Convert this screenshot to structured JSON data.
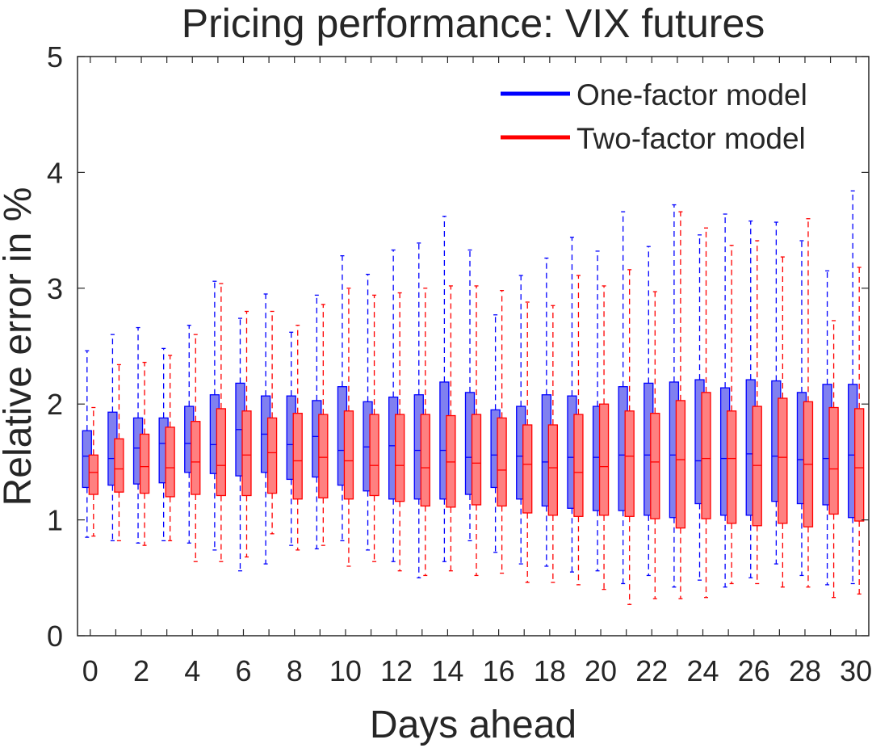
{
  "chart_data": {
    "type": "boxplot",
    "title": "Pricing performance: VIX futures",
    "xlabel": "Days ahead",
    "ylabel": "Relative error in %",
    "xlim": [
      -0.5,
      30.5
    ],
    "ylim": [
      0,
      5
    ],
    "xticks": [
      "0",
      "2",
      "4",
      "6",
      "8",
      "10",
      "12",
      "14",
      "16",
      "18",
      "20",
      "22",
      "24",
      "26",
      "28",
      "30"
    ],
    "yticks": [
      "0",
      "1",
      "2",
      "3",
      "4",
      "5"
    ],
    "legend_position": "top-right",
    "series": [
      {
        "name": "One-factor model",
        "color": "#0000ff",
        "fill": "#8080f0",
        "days": [
          0,
          1,
          2,
          3,
          4,
          5,
          6,
          7,
          8,
          9,
          10,
          11,
          12,
          13,
          14,
          15,
          16,
          17,
          18,
          19,
          20,
          21,
          22,
          23,
          24,
          25,
          26,
          27,
          28,
          29,
          30
        ],
        "whisker_low": [
          0.85,
          0.82,
          0.8,
          0.82,
          0.8,
          0.74,
          0.56,
          0.62,
          0.78,
          0.75,
          0.82,
          0.74,
          0.64,
          0.5,
          0.64,
          0.82,
          0.72,
          0.62,
          0.6,
          0.55,
          0.56,
          0.45,
          0.52,
          0.42,
          0.48,
          0.42,
          0.5,
          0.62,
          0.52,
          0.44,
          0.45
        ],
        "q1": [
          1.28,
          1.3,
          1.31,
          1.32,
          1.41,
          1.4,
          1.38,
          1.41,
          1.35,
          1.37,
          1.3,
          1.25,
          1.18,
          1.18,
          1.18,
          1.22,
          1.28,
          1.18,
          1.12,
          1.1,
          1.08,
          1.08,
          1.04,
          1.02,
          1.14,
          1.04,
          1.04,
          1.16,
          1.14,
          1.13,
          1.02
        ],
        "median": [
          1.55,
          1.53,
          1.62,
          1.66,
          1.66,
          1.65,
          1.78,
          1.74,
          1.65,
          1.72,
          1.6,
          1.63,
          1.64,
          1.6,
          1.6,
          1.54,
          1.56,
          1.55,
          1.5,
          1.54,
          1.54,
          1.56,
          1.56,
          1.56,
          1.51,
          1.53,
          1.57,
          1.55,
          1.52,
          1.53,
          1.56
        ],
        "q3": [
          1.77,
          1.93,
          1.88,
          1.88,
          1.98,
          2.08,
          2.18,
          2.07,
          2.07,
          2.03,
          2.15,
          2.02,
          2.06,
          2.08,
          2.19,
          2.1,
          1.95,
          1.98,
          2.08,
          2.07,
          1.98,
          2.15,
          2.18,
          2.19,
          2.21,
          2.14,
          2.21,
          2.2,
          2.1,
          2.17,
          2.17
        ],
        "whisker_high": [
          2.46,
          2.6,
          2.66,
          2.48,
          2.68,
          3.06,
          2.74,
          2.95,
          2.62,
          2.94,
          3.28,
          3.12,
          3.33,
          3.39,
          3.62,
          3.33,
          2.77,
          3.11,
          3.26,
          3.44,
          3.32,
          3.66,
          3.36,
          3.72,
          3.46,
          3.64,
          3.58,
          3.57,
          3.41,
          3.15,
          3.84
        ]
      },
      {
        "name": "Two-factor model",
        "color": "#ff0000",
        "fill": "#ff8080",
        "days": [
          0,
          1,
          2,
          3,
          4,
          5,
          6,
          7,
          8,
          9,
          10,
          11,
          12,
          13,
          14,
          15,
          16,
          17,
          18,
          19,
          20,
          21,
          22,
          23,
          24,
          25,
          26,
          27,
          28,
          29,
          30
        ],
        "whisker_low": [
          0.86,
          0.82,
          0.78,
          0.82,
          0.64,
          0.64,
          0.68,
          0.88,
          0.74,
          0.78,
          0.6,
          0.64,
          0.56,
          0.52,
          0.56,
          0.52,
          0.54,
          0.46,
          0.46,
          0.44,
          0.4,
          0.27,
          0.32,
          0.32,
          0.33,
          0.45,
          0.45,
          0.42,
          0.42,
          0.33,
          0.36
        ],
        "q1": [
          1.22,
          1.24,
          1.23,
          1.2,
          1.22,
          1.21,
          1.21,
          1.23,
          1.18,
          1.19,
          1.18,
          1.21,
          1.16,
          1.12,
          1.11,
          1.13,
          1.12,
          1.06,
          1.04,
          1.03,
          1.04,
          1.03,
          1.01,
          0.93,
          1.01,
          0.97,
          0.95,
          0.97,
          0.94,
          1.05,
          0.99
        ],
        "median": [
          1.41,
          1.44,
          1.46,
          1.45,
          1.5,
          1.47,
          1.56,
          1.58,
          1.51,
          1.54,
          1.51,
          1.47,
          1.47,
          1.45,
          1.5,
          1.49,
          1.43,
          1.48,
          1.45,
          1.41,
          1.46,
          1.55,
          1.5,
          1.52,
          1.53,
          1.53,
          1.47,
          1.54,
          1.48,
          1.44,
          1.45
        ],
        "q3": [
          1.56,
          1.7,
          1.74,
          1.8,
          1.85,
          1.96,
          1.94,
          1.88,
          1.92,
          1.91,
          1.94,
          1.91,
          1.91,
          1.91,
          1.9,
          1.91,
          1.88,
          1.82,
          1.82,
          1.91,
          2.0,
          1.94,
          1.92,
          2.03,
          2.1,
          1.94,
          1.98,
          2.05,
          2.02,
          1.97,
          1.96
        ],
        "whisker_high": [
          1.97,
          2.34,
          2.36,
          2.42,
          2.6,
          3.04,
          2.8,
          2.8,
          2.68,
          2.86,
          3.0,
          2.94,
          2.96,
          3.0,
          3.02,
          3.02,
          2.98,
          2.88,
          2.85,
          3.11,
          3.02,
          3.16,
          2.97,
          3.66,
          3.52,
          3.37,
          3.41,
          3.27,
          3.6,
          2.72,
          3.18
        ]
      }
    ]
  }
}
